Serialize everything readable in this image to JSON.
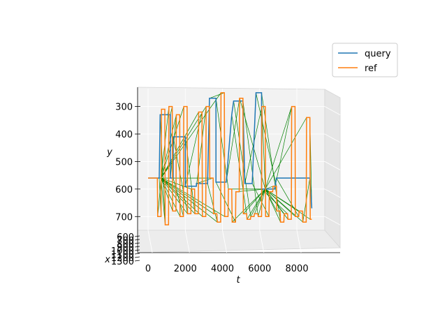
{
  "chart_data": {
    "type": "line",
    "projection": "3d",
    "xlabel": "t",
    "ylabel": "y",
    "zlabel": "x",
    "t_ticks": [
      "0",
      "2000",
      "4000",
      "6000",
      "8000"
    ],
    "y_ticks": [
      "300",
      "400",
      "500",
      "600",
      "700"
    ],
    "x_ticks": [
      "600",
      "700",
      "800",
      "900",
      "1000",
      "1100",
      "1200",
      "1300"
    ],
    "legend_placement": "upper-right",
    "series": [
      {
        "name": "query",
        "color": "#1f77b4",
        "points": [
          [
            0,
            560
          ],
          [
            600,
            560
          ],
          [
            650,
            330
          ],
          [
            1200,
            330
          ],
          [
            1200,
            560
          ],
          [
            1350,
            560
          ],
          [
            1350,
            410
          ],
          [
            2000,
            410
          ],
          [
            2000,
            590
          ],
          [
            2600,
            590
          ],
          [
            2600,
            580
          ],
          [
            3200,
            580
          ],
          [
            3300,
            270
          ],
          [
            3650,
            270
          ],
          [
            3650,
            575
          ],
          [
            4200,
            575
          ],
          [
            4500,
            330
          ],
          [
            4600,
            280
          ],
          [
            5100,
            280
          ],
          [
            5200,
            580
          ],
          [
            5600,
            580
          ],
          [
            5800,
            250
          ],
          [
            6100,
            250
          ],
          [
            6100,
            600
          ],
          [
            6800,
            600
          ],
          [
            6900,
            560
          ],
          [
            8700,
            560
          ],
          [
            8800,
            670
          ]
        ]
      },
      {
        "name": "ref",
        "color": "#ff7f0e",
        "points": [
          [
            0,
            560
          ],
          [
            500,
            560
          ],
          [
            520,
            700
          ],
          [
            700,
            700
          ],
          [
            720,
            310
          ],
          [
            900,
            310
          ],
          [
            920,
            730
          ],
          [
            1100,
            730
          ],
          [
            1120,
            300
          ],
          [
            1300,
            300
          ],
          [
            1320,
            680
          ],
          [
            1500,
            680
          ],
          [
            1520,
            330
          ],
          [
            1700,
            330
          ],
          [
            1720,
            700
          ],
          [
            1900,
            700
          ],
          [
            1920,
            300
          ],
          [
            2100,
            300
          ],
          [
            2120,
            690
          ],
          [
            2300,
            690
          ],
          [
            2320,
            600
          ],
          [
            2500,
            600
          ],
          [
            2520,
            690
          ],
          [
            2700,
            690
          ],
          [
            2720,
            320
          ],
          [
            2900,
            320
          ],
          [
            2920,
            700
          ],
          [
            3100,
            700
          ],
          [
            3120,
            300
          ],
          [
            3300,
            300
          ],
          [
            3320,
            560
          ],
          [
            3500,
            560
          ],
          [
            3520,
            690
          ],
          [
            3700,
            690
          ],
          [
            3720,
            720
          ],
          [
            3900,
            720
          ],
          [
            3920,
            250
          ],
          [
            4100,
            250
          ],
          [
            4120,
            700
          ],
          [
            4300,
            700
          ],
          [
            4320,
            600
          ],
          [
            4500,
            600
          ],
          [
            4520,
            720
          ],
          [
            4700,
            720
          ],
          [
            4720,
            610
          ],
          [
            4900,
            610
          ],
          [
            4920,
            270
          ],
          [
            5100,
            270
          ],
          [
            5120,
            690
          ],
          [
            5300,
            690
          ],
          [
            5320,
            710
          ],
          [
            5500,
            710
          ],
          [
            5520,
            700
          ],
          [
            5700,
            700
          ],
          [
            5720,
            690
          ],
          [
            5900,
            690
          ],
          [
            5920,
            700
          ],
          [
            6100,
            700
          ],
          [
            6120,
            300
          ],
          [
            6300,
            300
          ],
          [
            6320,
            700
          ],
          [
            6500,
            700
          ],
          [
            6520,
            610
          ],
          [
            6700,
            610
          ],
          [
            6720,
            590
          ],
          [
            6900,
            590
          ],
          [
            6920,
            680
          ],
          [
            7100,
            680
          ],
          [
            7120,
            720
          ],
          [
            7300,
            720
          ],
          [
            7320,
            690
          ],
          [
            7500,
            690
          ],
          [
            7520,
            710
          ],
          [
            7700,
            710
          ],
          [
            7720,
            300
          ],
          [
            7900,
            300
          ],
          [
            7920,
            700
          ],
          [
            8100,
            700
          ],
          [
            8120,
            680
          ],
          [
            8300,
            680
          ],
          [
            8320,
            720
          ],
          [
            8500,
            720
          ],
          [
            8520,
            340
          ],
          [
            8700,
            340
          ],
          [
            8720,
            710
          ],
          [
            8800,
            710
          ]
        ]
      }
    ],
    "alignment_color": "#008000"
  }
}
